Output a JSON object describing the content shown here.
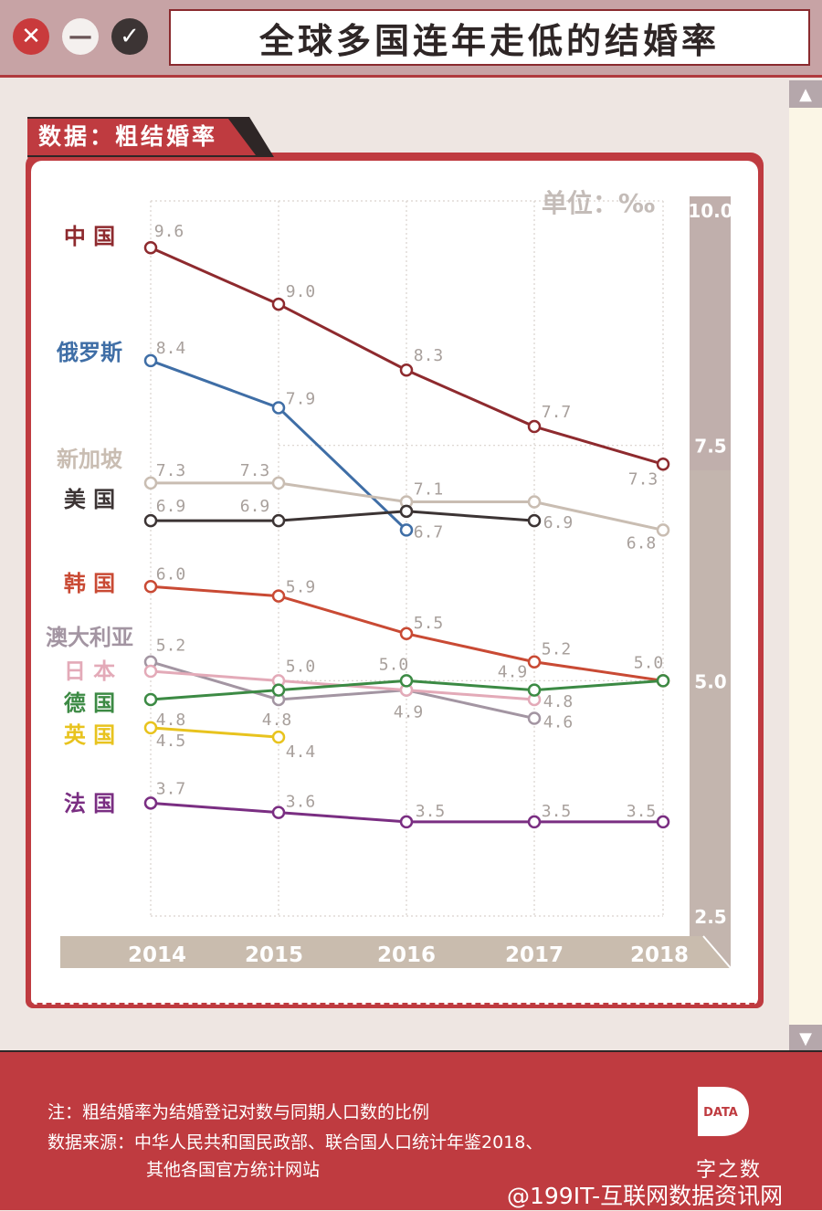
{
  "window": {
    "title": "全球多国连年走低的结婚率",
    "controls": {
      "close": "✕",
      "minimize": "—",
      "confirm": "✓"
    }
  },
  "section_tab": "数据：粗结婚率",
  "unit_label": "单位：‰",
  "chart_data": {
    "type": "line",
    "title": "全球多国连年走低的结婚率",
    "ylabel": "单位：‰",
    "xlabel": "",
    "categories": [
      "2014",
      "2015",
      "2016",
      "2017",
      "2018"
    ],
    "ylim": [
      2.5,
      10.0
    ],
    "y_ticks": [
      "10.0",
      "7.5",
      "5.0",
      "2.5"
    ],
    "grid": true,
    "legend_position": "left",
    "series": [
      {
        "name": "中 国",
        "color": "#8e2a2e",
        "values": [
          9.6,
          9.0,
          8.3,
          7.7,
          7.3
        ],
        "plot": [
          9.6,
          9.0,
          8.3,
          7.7,
          7.3
        ],
        "labels": [
          "9.6",
          "9.0",
          "8.3",
          "7.7",
          "7.3"
        ]
      },
      {
        "name": "俄罗斯",
        "color": "#3f6ea6",
        "values": [
          8.4,
          7.9,
          6.7,
          null,
          null
        ],
        "plot": [
          8.4,
          7.9,
          6.6,
          null,
          null
        ],
        "labels": [
          "8.4",
          "7.9",
          "6.7",
          "",
          ""
        ]
      },
      {
        "name": "新加坡",
        "color": "#c9bdb2",
        "values": [
          7.3,
          7.3,
          7.1,
          7.1,
          6.8
        ],
        "plot": [
          7.1,
          7.1,
          6.9,
          6.9,
          6.6
        ],
        "labels": [
          "7.3",
          "7.3",
          "7.1",
          "",
          "6.8"
        ]
      },
      {
        "name": "美 国",
        "color": "#3c3434",
        "values": [
          6.9,
          6.9,
          7.0,
          6.9,
          null
        ],
        "plot": [
          6.7,
          6.7,
          6.8,
          6.7,
          null
        ],
        "labels": [
          "6.9",
          "6.9",
          "",
          "6.9",
          ""
        ]
      },
      {
        "name": "韩 国",
        "color": "#c94a34",
        "values": [
          6.0,
          5.9,
          5.5,
          5.2,
          5.0
        ],
        "plot": [
          6.0,
          5.9,
          5.5,
          5.2,
          5.0
        ],
        "labels": [
          "6.0",
          "5.9",
          "5.5",
          "5.2",
          "5.0"
        ]
      },
      {
        "name": "澳大利亚",
        "color": "#a395a2",
        "values": [
          5.2,
          4.8,
          4.9,
          4.6,
          null
        ],
        "plot": [
          5.2,
          4.8,
          4.9,
          4.6,
          null
        ],
        "labels": [
          "5.2",
          "4.8",
          "4.9",
          "4.6",
          ""
        ]
      },
      {
        "name": "日 本",
        "color": "#e3aab8",
        "values": [
          5.1,
          5.0,
          4.9,
          4.8,
          null
        ],
        "plot": [
          5.1,
          5.0,
          4.9,
          4.8,
          null
        ],
        "labels": [
          "",
          "5.0",
          "",
          "4.8",
          ""
        ]
      },
      {
        "name": "德 国",
        "color": "#3c8a44",
        "values": [
          4.8,
          4.9,
          5.0,
          4.9,
          5.0
        ],
        "plot": [
          4.8,
          4.9,
          5.0,
          4.9,
          5.0
        ],
        "labels": [
          "4.8",
          "",
          "5.0",
          "4.9",
          ""
        ]
      },
      {
        "name": "英 国",
        "color": "#e8c31e",
        "values": [
          4.5,
          4.4,
          null,
          null,
          null
        ],
        "plot": [
          4.5,
          4.4,
          null,
          null,
          null
        ],
        "labels": [
          "4.5",
          "4.4",
          "",
          "",
          ""
        ]
      },
      {
        "name": "法 国",
        "color": "#7a2e82",
        "values": [
          3.7,
          3.6,
          3.5,
          3.5,
          3.5
        ],
        "plot": [
          3.7,
          3.6,
          3.5,
          3.5,
          3.5
        ],
        "labels": [
          "3.7",
          "3.6",
          "3.5",
          "3.5",
          "3.5"
        ]
      }
    ]
  },
  "footer": {
    "note": "注：粗结婚率为结婚登记对数与同期人口数的比例",
    "source_line1": "数据来源：中华人民共和国民政部、联合国人口统计年鉴2018、",
    "source_line2": "其他各国官方统计网站",
    "logo_mark": "DATA",
    "logo_text": "字之数",
    "watermark": "@199IT-互联网数据资讯网"
  }
}
